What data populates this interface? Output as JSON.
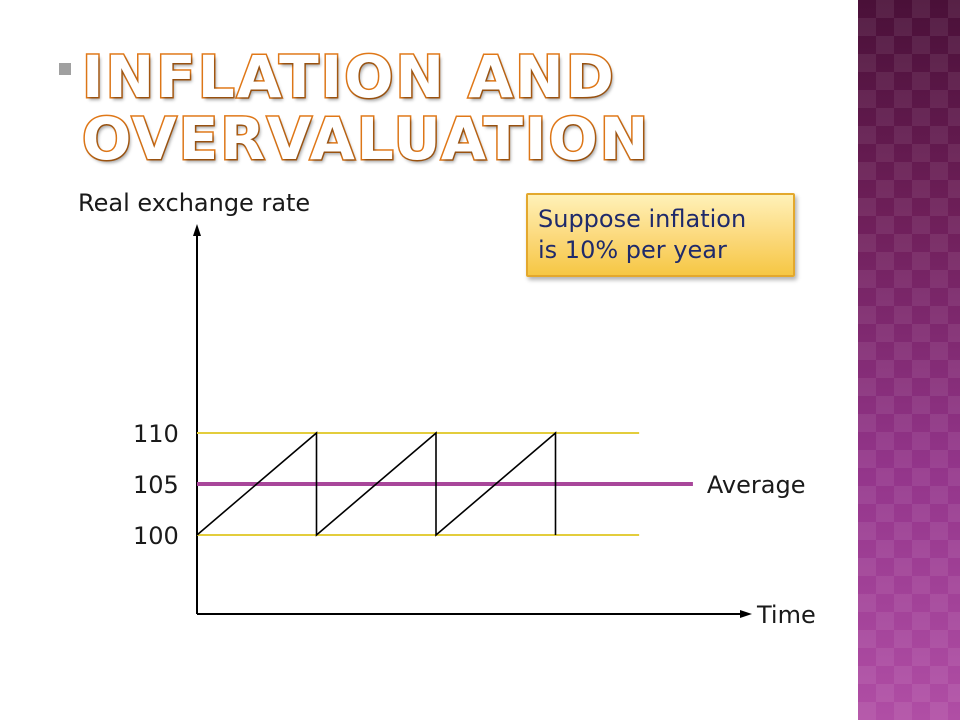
{
  "slide": {
    "title_lines": [
      "INFLATION AND",
      "OVERVALUATION"
    ],
    "callout_text": "Suppose inflation\nis 10% per year"
  },
  "chart_data": {
    "type": "line",
    "xlabel": "Time",
    "ylabel": "Real exchange rate",
    "yticks": [
      100,
      105,
      110
    ],
    "grid": false,
    "series": [
      {
        "role": "sawtooth",
        "color": "#000000",
        "points": [
          [
            0,
            100
          ],
          [
            1,
            110
          ],
          [
            1,
            100
          ],
          [
            2,
            110
          ],
          [
            2,
            100
          ],
          [
            3,
            110
          ],
          [
            3,
            100
          ]
        ]
      }
    ],
    "reference_lines": [
      {
        "y": 110,
        "color": "#e3cd3c",
        "x_end": 3.7
      },
      {
        "y": 100,
        "color": "#e3cd3c",
        "x_end": 3.7
      },
      {
        "y": 105,
        "color": "#a8469a",
        "label": "Average",
        "x_end": 4.15
      }
    ],
    "xlim": [
      0,
      4.6
    ]
  }
}
